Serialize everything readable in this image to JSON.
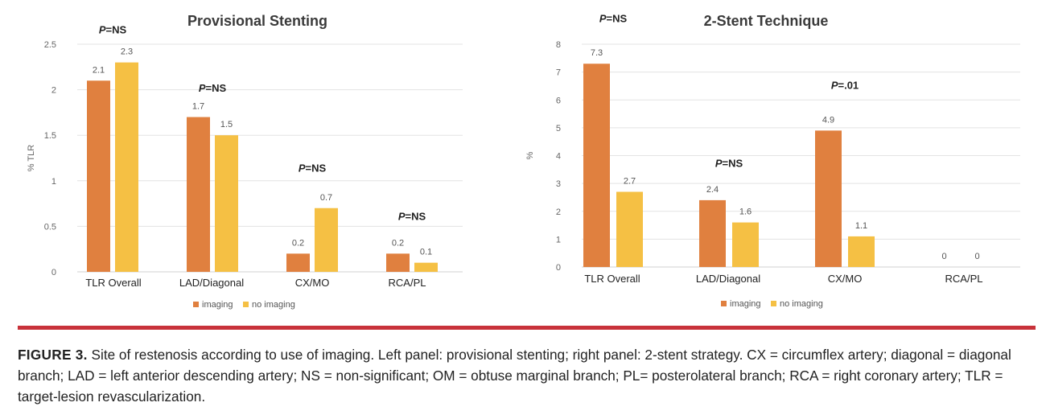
{
  "colors": {
    "imaging": "#e0803f",
    "no_imaging": "#f5c044",
    "grid": "#e3e3e3",
    "divider": "#c8323a"
  },
  "chart_data": [
    {
      "type": "bar",
      "title": "Provisional Stenting",
      "ylabel": "% TLR",
      "xlabel": "",
      "ylim": [
        0,
        2.5
      ],
      "yticks": [
        "0",
        "0.5",
        "1",
        "1.5",
        "2",
        "2.5"
      ],
      "categories": [
        "TLR Overall",
        "LAD/Diagonal",
        "CX/MO",
        "RCA/PL"
      ],
      "series": [
        {
          "name": "imaging",
          "values": [
            2.1,
            1.7,
            0.2,
            0.2
          ],
          "labels": [
            "2.1",
            "1.7",
            "0.2",
            "0.2"
          ]
        },
        {
          "name": "no imaging",
          "values": [
            2.3,
            1.5,
            0.7,
            0.1
          ],
          "labels": [
            "2.3",
            "1.5",
            "0.7",
            "0.1"
          ]
        }
      ],
      "annotations": [
        {
          "p": "P",
          "text": "=NS",
          "category": 0,
          "y": 2.62
        },
        {
          "p": "P",
          "text": "=NS",
          "category": 1,
          "y": 1.98
        },
        {
          "p": "P",
          "text": "=NS",
          "category": 2,
          "y": 1.1
        },
        {
          "p": "P",
          "text": "=NS",
          "category": 3,
          "y": 0.57
        }
      ],
      "grid": true,
      "legend": "bottom"
    },
    {
      "type": "bar",
      "title": "2-Stent Technique",
      "ylabel": "%",
      "xlabel": "",
      "ylim": [
        0,
        8
      ],
      "yticks": [
        "0",
        "1",
        "2",
        "3",
        "4",
        "5",
        "6",
        "7",
        "8"
      ],
      "categories": [
        "TLR Overall",
        "LAD/Diagonal",
        "CX/MO",
        "RCA/PL"
      ],
      "series": [
        {
          "name": "imaging",
          "values": [
            7.3,
            2.4,
            4.9,
            0
          ],
          "labels": [
            "7.3",
            "2.4",
            "4.9",
            "0"
          ]
        },
        {
          "name": "no imaging",
          "values": [
            2.7,
            1.6,
            1.1,
            0
          ],
          "labels": [
            "2.7",
            "1.6",
            "1.1",
            "0"
          ]
        }
      ],
      "annotations": [
        {
          "p": "P",
          "text": "=NS",
          "category": 0,
          "y": 8.8
        },
        {
          "p": "P",
          "text": "=NS",
          "category": 1,
          "y": 3.6
        },
        {
          "p": "P",
          "text": "=.01",
          "category": 2,
          "y": 6.4
        }
      ],
      "grid": true,
      "legend": "bottom"
    }
  ],
  "caption": {
    "label": "FIGURE 3.",
    "text": "Site of restenosis according to use of imaging. Left panel: provisional stenting; right panel: 2-stent strategy. CX = circumflex artery; diagonal = diagonal branch; LAD = left anterior descending artery; NS = non-significant; OM = obtuse marginal branch; PL= posterolateral branch; RCA = right coronary artery; TLR = target-lesion revascularization."
  }
}
